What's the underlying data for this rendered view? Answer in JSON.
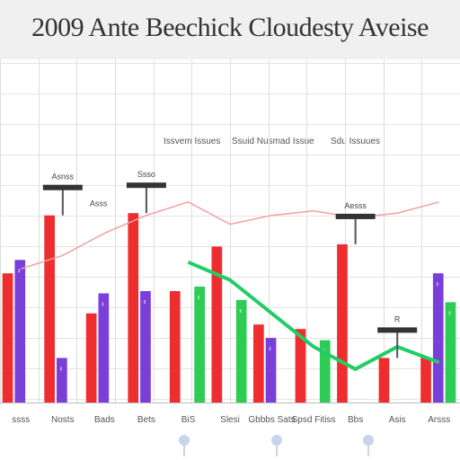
{
  "chart_data": {
    "type": "bar",
    "title": "2009 Ante Beechick Cloudesty Aveise",
    "xlabel": "",
    "ylabel": "",
    "ylim": [
      0,
      100
    ],
    "grid": true,
    "legend_position": "top-right",
    "legend": [
      {
        "label": "Issvem Issues",
        "color": "#666666"
      },
      {
        "label": "Ssuid Nusmad Issue",
        "color": "#666666"
      },
      {
        "label": "Sdu Issuues",
        "color": "#666666"
      }
    ],
    "categories": [
      "ssss",
      "Nosts",
      "Bads",
      "Bets",
      "BiS",
      "Slesi",
      "Gbbbs Sats",
      "Spsd Fitiss",
      "Bbs",
      "Asis",
      "Arsss"
    ],
    "series": [
      {
        "type": "bar",
        "color": "#ee2e2e",
        "values": [
          58,
          84,
          40,
          85,
          50,
          70,
          35,
          33,
          71,
          20,
          20
        ]
      },
      {
        "type": "bar",
        "color": "#7b3fd9",
        "values": [
          64,
          20,
          49,
          50,
          0,
          0,
          29,
          0,
          0,
          0,
          58
        ]
      },
      {
        "type": "bar",
        "color": "#2ecc55",
        "values": [
          0,
          0,
          0,
          0,
          52,
          46,
          0,
          28,
          0,
          0,
          45
        ]
      },
      {
        "type": "line",
        "color": "#f0a0a0",
        "values": [
          60,
          66,
          76,
          84,
          90,
          80,
          84,
          86,
          83,
          85,
          90
        ]
      },
      {
        "type": "line",
        "color": "#22cc66",
        "values": [
          0,
          0,
          0,
          0,
          63,
          55,
          40,
          25,
          15,
          25,
          18
        ]
      }
    ],
    "annotations": [
      {
        "category": 1,
        "text": "Asnss",
        "label_text": "Asss"
      },
      {
        "category": 3,
        "text": "Ssso"
      },
      {
        "category": 8,
        "text": "Aesss"
      },
      {
        "category": 9,
        "text": "R"
      }
    ]
  }
}
